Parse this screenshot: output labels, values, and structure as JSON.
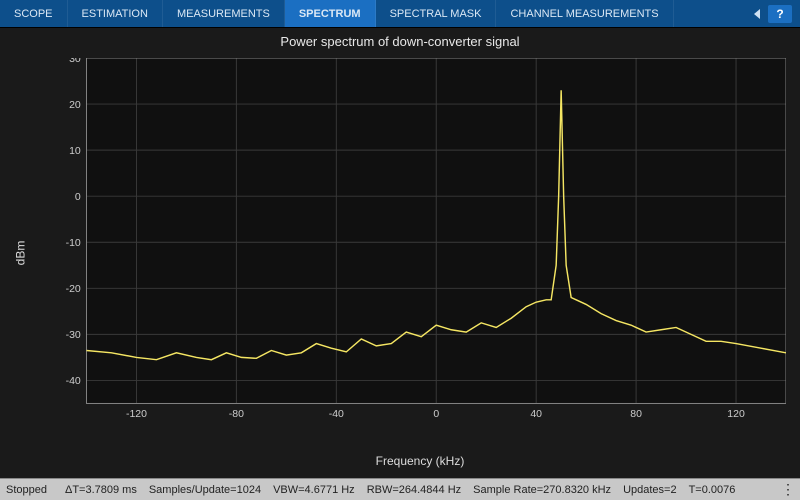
{
  "tabs": {
    "items": [
      {
        "label": "SCOPE"
      },
      {
        "label": "ESTIMATION"
      },
      {
        "label": "MEASUREMENTS"
      },
      {
        "label": "SPECTRUM",
        "active": true
      },
      {
        "label": "SPECTRAL MASK"
      },
      {
        "label": "CHANNEL MEASUREMENTS"
      }
    ],
    "help": "?"
  },
  "chart": {
    "title": "Power spectrum of down-converter signal",
    "ylabel": "dBm",
    "xlabel": "Frequency (kHz)",
    "type": "line",
    "xlim": [
      -140,
      140
    ],
    "ylim": [
      -45,
      30
    ],
    "xticks": [
      -120,
      -80,
      -40,
      0,
      40,
      80,
      120
    ],
    "yticks": [
      -40,
      -30,
      -20,
      -10,
      0,
      10,
      20,
      30
    ],
    "line_color": "#f5e663",
    "background_color": "#101010",
    "grid_color": "#3a3a3a",
    "axis_border_color": "#888888",
    "tick_label_color": "#cccccc",
    "title_color": "#e8e8e8",
    "label_color": "#dddddd",
    "title_fontsize": 13,
    "tick_fontsize": 11,
    "label_fontsize": 12,
    "line_width": 1.5,
    "data": {
      "x": [
        -140,
        -130,
        -120,
        -112,
        -104,
        -96,
        -90,
        -84,
        -78,
        -72,
        -66,
        -60,
        -54,
        -48,
        -42,
        -36,
        -30,
        -24,
        -18,
        -12,
        -6,
        0,
        6,
        12,
        18,
        24,
        30,
        36,
        40,
        44,
        46,
        48,
        49,
        50,
        51,
        52,
        54,
        56,
        60,
        66,
        72,
        78,
        84,
        90,
        96,
        102,
        108,
        114,
        120,
        130,
        140
      ],
      "y": [
        -33.5,
        -34,
        -35,
        -35.5,
        -34,
        -35,
        -35.5,
        -34,
        -35,
        -35.2,
        -33.5,
        -34.5,
        -34,
        -32,
        -33,
        -33.8,
        -31,
        -32.5,
        -32,
        -29.5,
        -30.5,
        -28,
        -29,
        -29.5,
        -27.5,
        -28.5,
        -26.5,
        -24,
        -23,
        -22.5,
        -22.5,
        -15,
        0,
        23,
        0,
        -15,
        -22,
        -22.5,
        -23.5,
        -25.5,
        -27,
        -28,
        -29.5,
        -29,
        -28.5,
        -30,
        -31.5,
        -31.5,
        -32,
        -33,
        -34
      ]
    }
  },
  "status": {
    "state": "Stopped",
    "dt": "ΔT=3.7809 ms",
    "samples": "Samples/Update=1024",
    "vbw": "VBW=4.6771 Hz",
    "rbw": "RBW=264.4844 Hz",
    "rate": "Sample Rate=270.8320 kHz",
    "updates": "Updates=2",
    "t": "T=0.0076"
  }
}
